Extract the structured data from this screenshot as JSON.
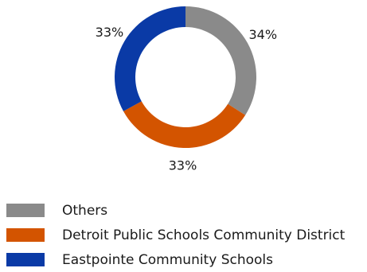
{
  "chart_data": {
    "type": "pie",
    "donut": true,
    "title": "",
    "legend_position": "bottom-left",
    "series": [
      {
        "name": "Others",
        "value": 34,
        "label": "34%",
        "color": "#8a8a8a"
      },
      {
        "name": "Detroit Public Schools Community District",
        "value": 33,
        "label": "33%",
        "color": "#d35400"
      },
      {
        "name": "Eastpointe Community Schools",
        "value": 33,
        "label": "33%",
        "color": "#0a3aa6"
      }
    ]
  }
}
